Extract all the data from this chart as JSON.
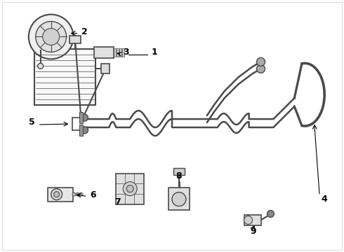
{
  "background_color": "#ffffff",
  "line_color": "#4a4a4a",
  "label_color": "#000000",
  "figsize": [
    4.9,
    3.6
  ],
  "dpi": 100
}
